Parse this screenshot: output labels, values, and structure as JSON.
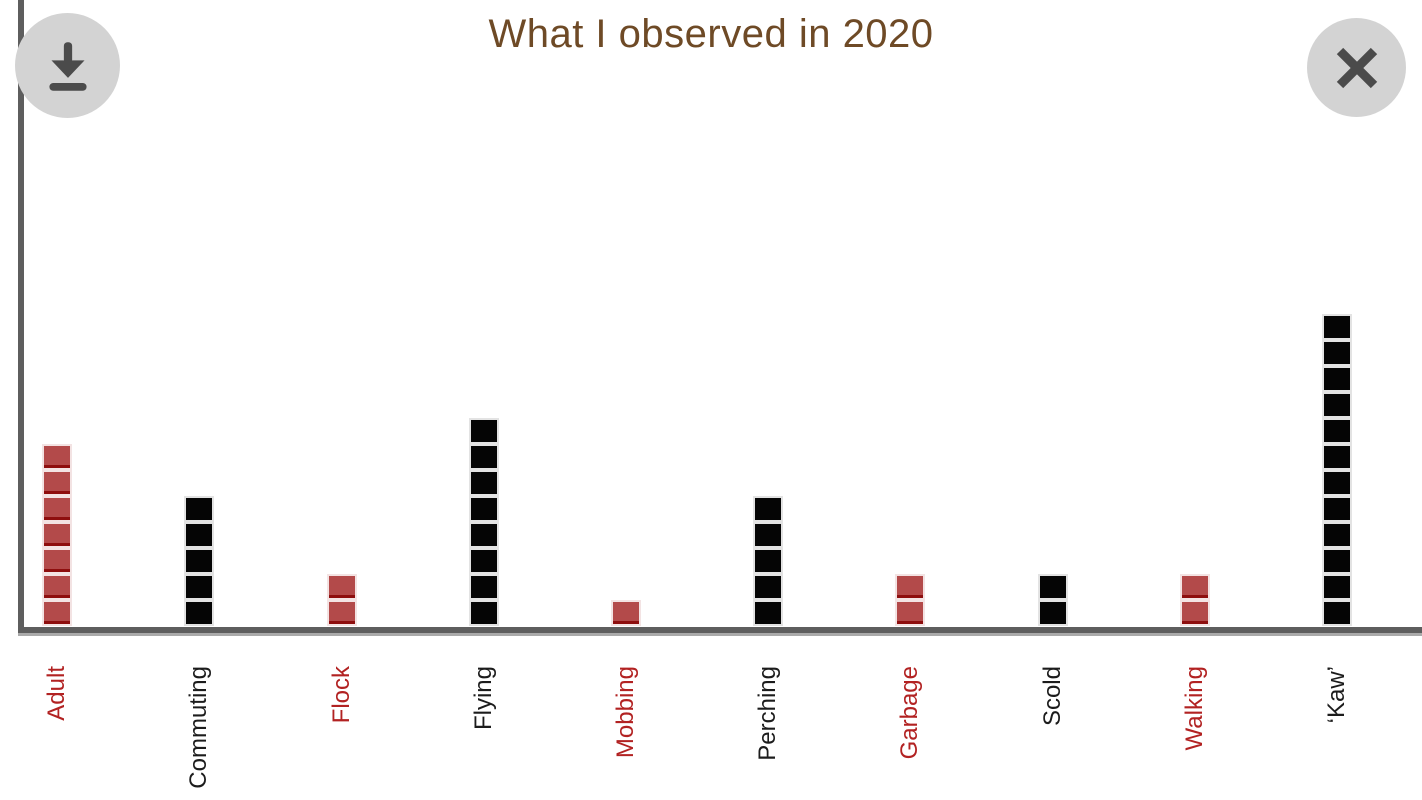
{
  "header": {
    "title": "What I observed in 2020",
    "title_color": "#6e4a26"
  },
  "toolbar": {
    "download_icon": "download-icon",
    "close_icon": "close-icon",
    "button_bg": "#d3d3d3",
    "glyph_color": "#4b4b4b"
  },
  "axes": {
    "color": "#5e5e5e"
  },
  "chart_data": {
    "type": "bar",
    "variant": "waffle-stacked-squares",
    "title": "What I observed in 2020",
    "categories": [
      "Adult",
      "Commuting",
      "Flock",
      "Flying",
      "Mobbing",
      "Perching",
      "Garbage",
      "Scold",
      "Walking",
      "‘Kaw’"
    ],
    "values": [
      7,
      5,
      2,
      8,
      1,
      5,
      2,
      2,
      2,
      12
    ],
    "color_keys": [
      "red",
      "black",
      "red",
      "black",
      "red",
      "black",
      "red",
      "black",
      "red",
      "black"
    ],
    "palette": {
      "red": {
        "fill": "#b34a4a",
        "bottom_border": "#8e0e0e",
        "outline": "#f3e3e3",
        "label": "#b22222"
      },
      "black": {
        "fill": "#050505",
        "bottom_border": "#050505",
        "outline": "#e3e3e3",
        "label": "#1c1c1c"
      }
    },
    "xlabel": "",
    "ylabel": "",
    "unit_square": "1 square = 1 observation",
    "grid": false,
    "legend": false,
    "ylim": [
      0,
      12
    ]
  }
}
